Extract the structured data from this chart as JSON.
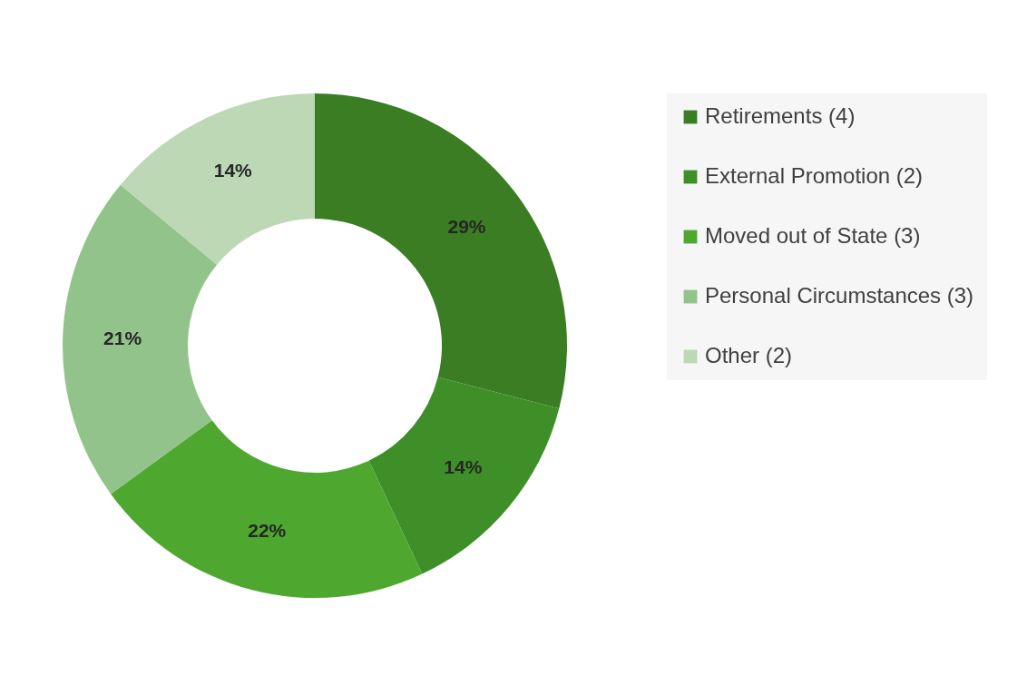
{
  "chart_data": {
    "type": "donut",
    "categories": [
      "Retirements (4)",
      "External Promotion (2)",
      "Moved out of State (3)",
      "Personal Circumstances (3)",
      "Other (2)"
    ],
    "values": [
      29,
      14,
      22,
      21,
      14
    ],
    "value_labels": [
      "29%",
      "14%",
      "22%",
      "21%",
      "14%"
    ],
    "colors": [
      "#3a7d22",
      "#3f8f28",
      "#4ea72e",
      "#92c38a",
      "#bcd8b4"
    ],
    "legend": "right"
  }
}
